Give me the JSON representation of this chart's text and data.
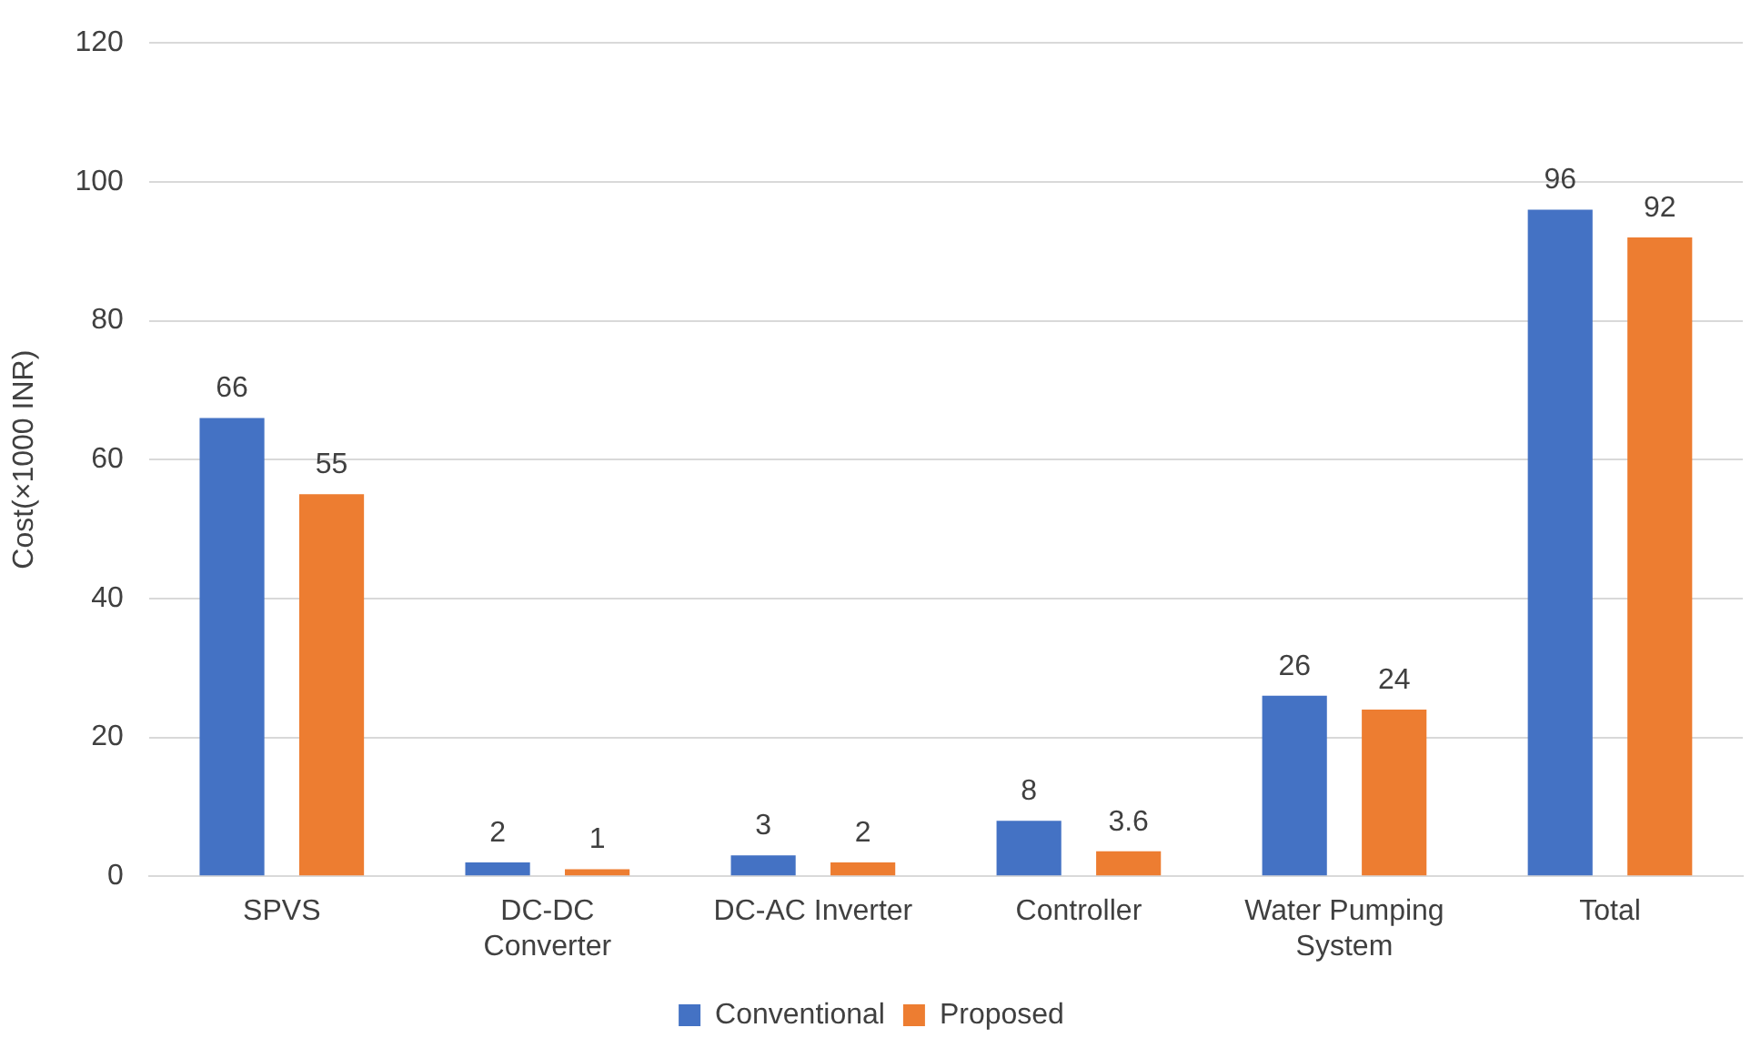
{
  "chart_data": {
    "type": "bar",
    "ylabel": "Cost(×1000 INR)",
    "categories": [
      "SPVS",
      "DC-DC Converter",
      "DC-AC Inverter",
      "Controller",
      "Water Pumping System",
      "Total"
    ],
    "series": [
      {
        "name": "Conventional",
        "color": "#4472c4",
        "values": [
          66,
          2,
          3,
          8,
          26,
          96
        ]
      },
      {
        "name": "Proposed",
        "color": "#ed7d31",
        "values": [
          55,
          1,
          2,
          3.6,
          24,
          92
        ]
      }
    ],
    "ylim": [
      0,
      120
    ],
    "yticks": [
      0,
      20,
      40,
      60,
      80,
      100,
      120
    ],
    "grid": "y",
    "legend": "bottom",
    "data_labels": true
  }
}
